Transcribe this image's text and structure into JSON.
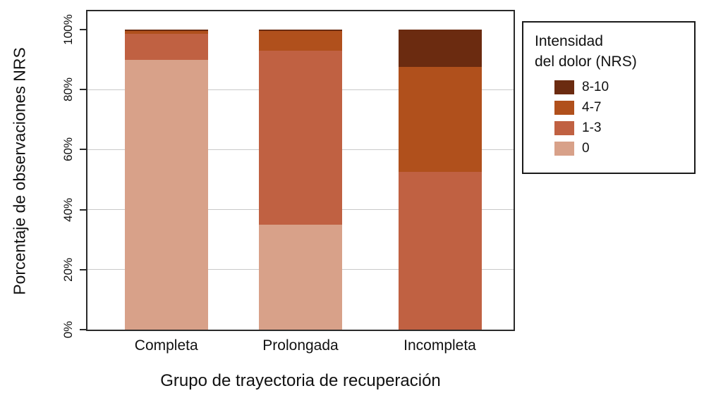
{
  "chart_data": {
    "type": "bar",
    "stacked": true,
    "title": "",
    "xlabel": "Grupo de trayectoria de recuperación",
    "ylabel": "Porcentaje de observaciones NRS",
    "categories": [
      "Completa",
      "Prolongada",
      "Incompleta"
    ],
    "series": [
      {
        "name": "0",
        "color": "#d8a189",
        "values": [
          90,
          35,
          0
        ]
      },
      {
        "name": "1-3",
        "color": "#c06142",
        "values": [
          8.5,
          58,
          52.5
        ]
      },
      {
        "name": "4-7",
        "color": "#b0501c",
        "values": [
          1,
          6.5,
          35
        ]
      },
      {
        "name": "8-10",
        "color": "#6b2b10",
        "values": [
          0.5,
          0.5,
          12.5
        ]
      }
    ],
    "ylim": [
      0,
      100
    ],
    "y_ticks": [
      {
        "label": "0%",
        "value": 0
      },
      {
        "label": "20%",
        "value": 20
      },
      {
        "label": "40%",
        "value": 40
      },
      {
        "label": "60%",
        "value": 60
      },
      {
        "label": "80%",
        "value": 80
      },
      {
        "label": "100%",
        "value": 100
      }
    ],
    "gridlines": [
      20,
      40,
      60,
      80
    ],
    "grid": true,
    "legend_position": "top-right"
  },
  "legend": {
    "title": "Intensidad\ndel dolor (NRS)",
    "entries": [
      {
        "label": "8-10",
        "color": "#6b2b10"
      },
      {
        "label": "4-7",
        "color": "#b0501c"
      },
      {
        "label": "1-3",
        "color": "#c06142"
      },
      {
        "label": "0",
        "color": "#d8a189"
      }
    ]
  }
}
